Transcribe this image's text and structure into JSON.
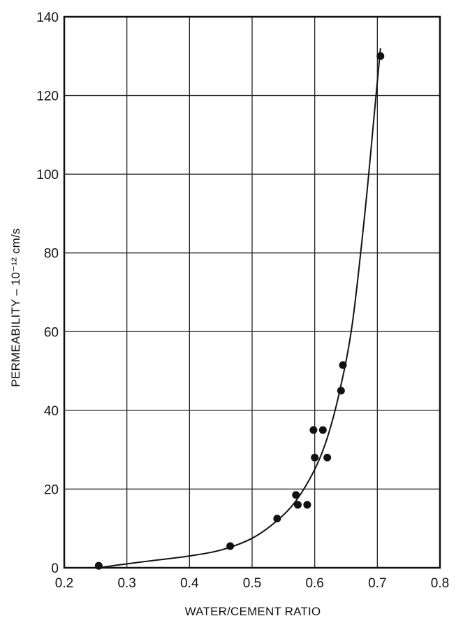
{
  "chart_data": {
    "type": "scatter",
    "xlabel": "WATER/CEMENT RATIO",
    "ylabel": "PERMEABILITY – 10⁻¹² cm/s",
    "xlim": [
      0.2,
      0.8
    ],
    "ylim": [
      0,
      140
    ],
    "xticks": [
      "0.2",
      "0.3",
      "0.4",
      "0.5",
      "0.6",
      "0.7",
      "0.8"
    ],
    "yticks": [
      "0",
      "20",
      "40",
      "60",
      "80",
      "100",
      "120",
      "140"
    ],
    "grid": true,
    "series": [
      {
        "kind": "points",
        "x": [
          0.255,
          0.465,
          0.54,
          0.57,
          0.573,
          0.588,
          0.598,
          0.6,
          0.613,
          0.62,
          0.642,
          0.645,
          0.705
        ],
        "y": [
          0.5,
          5.5,
          12.5,
          18.5,
          16,
          16,
          35,
          28,
          35,
          28,
          45,
          51.5,
          130
        ]
      },
      {
        "kind": "fitted-curve",
        "x": [
          0.255,
          0.3,
          0.35,
          0.4,
          0.45,
          0.5,
          0.54,
          0.57,
          0.6,
          0.62,
          0.64,
          0.66,
          0.68,
          0.695,
          0.705
        ],
        "y": [
          0,
          1,
          2,
          3,
          4.5,
          7.5,
          12,
          17,
          25,
          33,
          45,
          62,
          90,
          115,
          132
        ]
      }
    ]
  }
}
